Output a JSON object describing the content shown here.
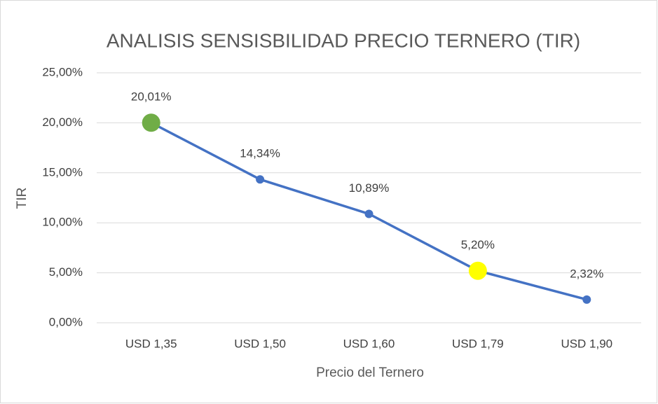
{
  "chart_data": {
    "type": "line",
    "title": "ANALISIS SENSISBILIDAD PRECIO TERNERO (TIR)",
    "x_label": "Precio del Ternero",
    "y_label": "TIR",
    "categories": [
      "USD 1,35",
      "USD 1,50",
      "USD 1,60",
      "USD 1,79",
      "USD 1,90"
    ],
    "values": [
      20.01,
      14.34,
      10.89,
      5.2,
      2.32
    ],
    "value_labels": [
      "20,01%",
      "14,34%",
      "10,89%",
      "5,20%",
      "2,32%"
    ],
    "color": "#4472c4",
    "marker_colors": [
      "#70ad47",
      "#4472c4",
      "#4472c4",
      "#ffff00",
      "#4472c4"
    ],
    "ylim": [
      0,
      25
    ],
    "yticks": [
      {
        "value": 0,
        "label": "0,00%"
      },
      {
        "value": 5,
        "label": "5,00%"
      },
      {
        "value": 10,
        "label": "10,00%"
      },
      {
        "value": 15,
        "label": "15,00%"
      },
      {
        "value": 20,
        "label": "20,00%"
      },
      {
        "value": 25,
        "label": "25,00%"
      }
    ],
    "grid": true
  }
}
